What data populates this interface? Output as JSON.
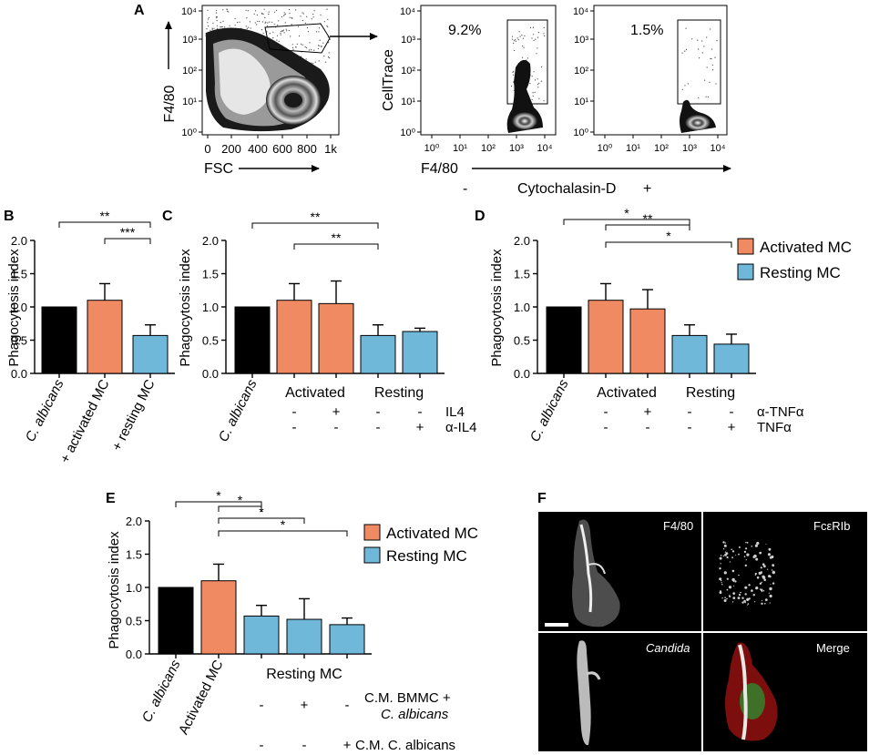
{
  "colors": {
    "ctrl": "#000000",
    "activated": "#f08a62",
    "resting": "#6fb8da"
  },
  "panel_labels": {
    "a": "A",
    "b": "B",
    "c": "C",
    "d": "D",
    "e": "E",
    "f": "F"
  },
  "panel_a": {
    "scatter_y_label": "F4/80",
    "scatter_x_label": "FSC",
    "scatter_x_ticks": [
      "0",
      "200",
      "400",
      "600",
      "800",
      "1k"
    ],
    "log_ticks": [
      "10⁰",
      "10¹",
      "10²",
      "10³",
      "10⁴"
    ],
    "hist_y_label": "CellTrace",
    "hist_x_label": "F4/80",
    "pct_minus": "9.2%",
    "pct_plus": "1.5%",
    "treatment": "Cytochalasin-D",
    "minus": "-",
    "plus": "+"
  },
  "y_axis_label": "Phagocytosis index",
  "y_ticks": [
    "0.0",
    "0.5",
    "1.0",
    "1.5",
    "2.0"
  ],
  "legend": {
    "activated": "Activated MC",
    "resting": "Resting MC"
  },
  "signs": {
    "minus": "-",
    "plus": "+"
  },
  "sig": {
    "one": "*",
    "two": "**",
    "three": "***"
  },
  "panel_b_labels": {
    "ctrl": "C. albicans",
    "act": "+ activated MC",
    "rest": "+ resting MC"
  },
  "panel_c_labels": {
    "ctrl": "C. albicans",
    "act": "Activated",
    "rest": "Resting",
    "row1": "IL4",
    "row2": "α-IL4"
  },
  "panel_d_labels": {
    "ctrl": "C. albicans",
    "act": "Activated",
    "rest": "Resting",
    "row1": "α-TNFα",
    "row2": "TNFα"
  },
  "panel_e_labels": {
    "ctrl": "C. albicans",
    "act": "Activated MC",
    "rest": "Resting MC",
    "row1a": "C.M. BMMC +",
    "row1b": "C. albicans",
    "row2": "C.M. C. albicans"
  },
  "panel_f": {
    "tl": "F4/80",
    "tr": "FcεRIb",
    "bl": "Candida",
    "br": "Merge"
  },
  "chart_data": [
    {
      "panel": "B",
      "type": "bar",
      "ylabel": "Phagocytosis index",
      "ylim": [
        0,
        2
      ],
      "categories": [
        "C. albicans",
        "+ activated MC",
        "+ resting MC"
      ],
      "values": [
        1.0,
        1.1,
        0.57
      ],
      "errors": [
        0,
        0.25,
        0.16
      ],
      "groups": [
        "ctrl",
        "activated",
        "resting"
      ],
      "significance": [
        [
          "**",
          0,
          2
        ],
        [
          "***",
          1,
          2
        ]
      ]
    },
    {
      "panel": "C",
      "type": "bar",
      "ylabel": "Phagocytosis index",
      "ylim": [
        0,
        2
      ],
      "categories": [
        "C. albicans",
        "Activated",
        "Activated + IL4",
        "Resting",
        "Resting + α-IL4"
      ],
      "values": [
        1.0,
        1.1,
        1.05,
        0.57,
        0.63
      ],
      "errors": [
        0,
        0.25,
        0.34,
        0.16,
        0.05
      ],
      "groups": [
        "ctrl",
        "activated",
        "activated",
        "resting",
        "resting"
      ],
      "significance": [
        [
          "**",
          0,
          3
        ],
        [
          "**",
          1,
          3
        ]
      ]
    },
    {
      "panel": "D",
      "type": "bar",
      "ylabel": "Phagocytosis index",
      "ylim": [
        0,
        2
      ],
      "categories": [
        "C. albicans",
        "Activated",
        "Activated + α-TNFα",
        "Resting",
        "Resting + TNFα"
      ],
      "values": [
        1.0,
        1.1,
        0.97,
        0.57,
        0.44
      ],
      "errors": [
        0,
        0.25,
        0.29,
        0.16,
        0.15
      ],
      "groups": [
        "ctrl",
        "activated",
        "activated",
        "resting",
        "resting"
      ],
      "significance": [
        [
          "*",
          0,
          3
        ],
        [
          "**",
          1,
          3
        ],
        [
          "*",
          1,
          4
        ]
      ]
    },
    {
      "panel": "E",
      "type": "bar",
      "ylabel": "Phagocytosis index",
      "ylim": [
        0,
        2
      ],
      "categories": [
        "C. albicans",
        "Activated MC",
        "Resting MC",
        "Resting MC + C.M. BMMC + C. albicans",
        "Resting MC + C.M. C. albicans"
      ],
      "values": [
        1.0,
        1.1,
        0.57,
        0.52,
        0.44
      ],
      "errors": [
        0,
        0.25,
        0.16,
        0.31,
        0.1
      ],
      "groups": [
        "ctrl",
        "activated",
        "resting",
        "resting",
        "resting"
      ],
      "significance": [
        [
          "*",
          0,
          2
        ],
        [
          "*",
          1,
          2
        ],
        [
          "*",
          1,
          3
        ],
        [
          "*",
          1,
          4
        ]
      ]
    }
  ]
}
